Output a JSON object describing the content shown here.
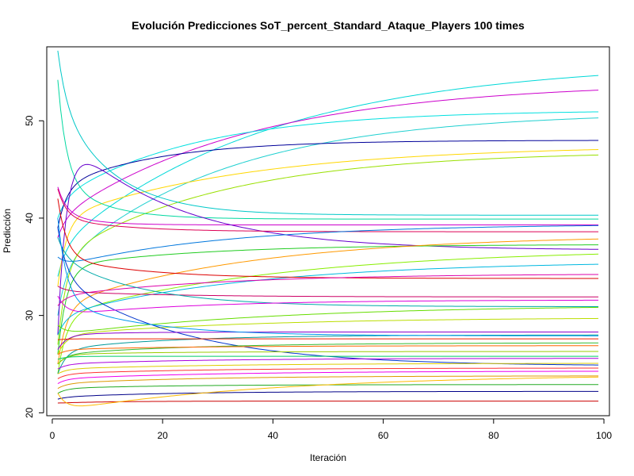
{
  "chart_data": {
    "type": "line",
    "title": "Evolución Predicciones SoT_percent_Standard_Ataque_Players 100 times",
    "xlabel": "Iteración",
    "ylabel": "Predicción",
    "xlim": [
      -1,
      101
    ],
    "ylim": [
      19.7,
      57.6
    ],
    "x_ticks": [
      0,
      20,
      40,
      60,
      80,
      100
    ],
    "x_tick_labels": [
      "0",
      "20",
      "40",
      "60",
      "80",
      "100"
    ],
    "y_ticks": [
      20,
      30,
      40,
      50
    ],
    "y_tick_labels": [
      "20",
      "30",
      "40",
      "50"
    ],
    "grid": false,
    "legend": "none",
    "x": [
      1,
      99
    ],
    "series": [
      {
        "color": "#00d8d8",
        "start": 34.0,
        "peak": 37.0,
        "end": 56.1,
        "tau": 38
      },
      {
        "color": "#cc00cc",
        "start": 38.0,
        "peak": 40.0,
        "end": 54.0,
        "tau": 35
      },
      {
        "color": "#00e0e0",
        "start": 40.0,
        "peak": 42.0,
        "end": 51.1,
        "tau": 25
      },
      {
        "color": "#20d0d0",
        "start": 30.0,
        "peak": 35.0,
        "end": 50.9,
        "tau": 30
      },
      {
        "color": "#000099",
        "start": 39.0,
        "peak": 43.2,
        "end": 48.0,
        "tau": 18
      },
      {
        "color": "#ffd700",
        "start": 33.0,
        "peak": 40.0,
        "end": 47.5,
        "tau": 35
      },
      {
        "color": "#99e000",
        "start": 27.0,
        "peak": 36.0,
        "end": 46.9,
        "tau": 30
      },
      {
        "color": "#00c8c8",
        "start": 57.2,
        "peak": 52.0,
        "end": 40.3,
        "tau": 10
      },
      {
        "color": "#00d8a0",
        "start": 54.2,
        "peak": 44.0,
        "end": 39.9,
        "tau": 8
      },
      {
        "color": "#cc00cc",
        "start": 43.2,
        "peak": 40.5,
        "end": 39.3,
        "tau": 6
      },
      {
        "color": "#6600cc",
        "start": 28.0,
        "peak": 49.2,
        "end": 36.7,
        "tau": 20
      },
      {
        "color": "#dd0055",
        "start": 43.0,
        "peak": 40.0,
        "end": 38.6,
        "tau": 12
      },
      {
        "color": "#0077dd",
        "start": 36.0,
        "peak": 35.0,
        "end": 39.4,
        "tau": 30
      },
      {
        "color": "#22cc22",
        "start": 26.0,
        "peak": 35.0,
        "end": 37.3,
        "tau": 25
      },
      {
        "color": "#ff9900",
        "start": 25.0,
        "peak": 31.0,
        "end": 38.3,
        "tau": 35
      },
      {
        "color": "#88ee00",
        "start": 24.0,
        "peak": 30.0,
        "end": 36.9,
        "tau": 40
      },
      {
        "color": "#00b8e0",
        "start": 28.0,
        "peak": 30.0,
        "end": 35.6,
        "tau": 35
      },
      {
        "color": "#dd0000",
        "start": 42.0,
        "peak": 36.0,
        "end": 33.8,
        "tau": 15
      },
      {
        "color": "#dd00aa",
        "start": 31.0,
        "peak": 32.0,
        "end": 34.3,
        "tau": 30
      },
      {
        "color": "#cc0066",
        "start": 33.0,
        "peak": 32.5,
        "end": 31.9,
        "tau": 20
      },
      {
        "color": "#00aaaa",
        "start": 38.0,
        "peak": 36.0,
        "end": 30.9,
        "tau": 15
      },
      {
        "color": "#66dd00",
        "start": 29.0,
        "peak": 28.0,
        "end": 31.1,
        "tau": 40
      },
      {
        "color": "#bbdd00",
        "start": 26.0,
        "peak": 28.0,
        "end": 29.8,
        "tau": 35
      },
      {
        "color": "#0033cc",
        "start": 39.0,
        "peak": 34.0,
        "end": 24.8,
        "tau": 22
      },
      {
        "color": "#8800cc",
        "start": 26.5,
        "peak": 28.0,
        "end": 28.3,
        "tau": 10
      },
      {
        "color": "#009999",
        "start": 24.0,
        "peak": 26.5,
        "end": 28.0,
        "tau": 20
      },
      {
        "color": "#ee2200",
        "start": 27.5,
        "peak": 27.6,
        "end": 27.6,
        "tau": 10
      },
      {
        "color": "#33bb33",
        "start": 25.0,
        "peak": 26.0,
        "end": 27.2,
        "tau": 25
      },
      {
        "color": "#ff6600",
        "start": 26.0,
        "peak": 26.5,
        "end": 26.9,
        "tau": 25
      },
      {
        "color": "#99cc00",
        "start": 25.0,
        "peak": 26.0,
        "end": 26.3,
        "tau": 20
      },
      {
        "color": "#00cc66",
        "start": 25.5,
        "peak": 25.8,
        "end": 25.8,
        "tau": 10
      },
      {
        "color": "#aa00dd",
        "start": 24.5,
        "peak": 25.0,
        "end": 25.6,
        "tau": 25
      },
      {
        "color": "#ddcc00",
        "start": 24.0,
        "peak": 24.5,
        "end": 25.1,
        "tau": 30
      },
      {
        "color": "#ff3333",
        "start": 23.5,
        "peak": 24.0,
        "end": 24.6,
        "tau": 25
      },
      {
        "color": "#ee00ee",
        "start": 23.0,
        "peak": 23.5,
        "end": 24.3,
        "tau": 30
      },
      {
        "color": "#dd9900",
        "start": 22.5,
        "peak": 23.0,
        "end": 23.8,
        "tau": 25
      },
      {
        "color": "#22aa22",
        "start": 22.0,
        "peak": 22.5,
        "end": 22.9,
        "tau": 20
      },
      {
        "color": "#000088",
        "start": 21.4,
        "peak": 21.6,
        "end": 22.2,
        "tau": 20
      },
      {
        "color": "#cc0000",
        "start": 21.0,
        "peak": 21.0,
        "end": 21.2,
        "tau": 10
      },
      {
        "color": "#ffbb00",
        "start": 22.0,
        "peak": 20.2,
        "end": 24.0,
        "tau": 40
      },
      {
        "color": "#dd00dd",
        "start": 32.0,
        "peak": 30.0,
        "end": 31.6,
        "tau": 25
      },
      {
        "color": "#0099ee",
        "start": 40.0,
        "peak": 31.5,
        "end": 27.9,
        "tau": 15
      }
    ]
  }
}
